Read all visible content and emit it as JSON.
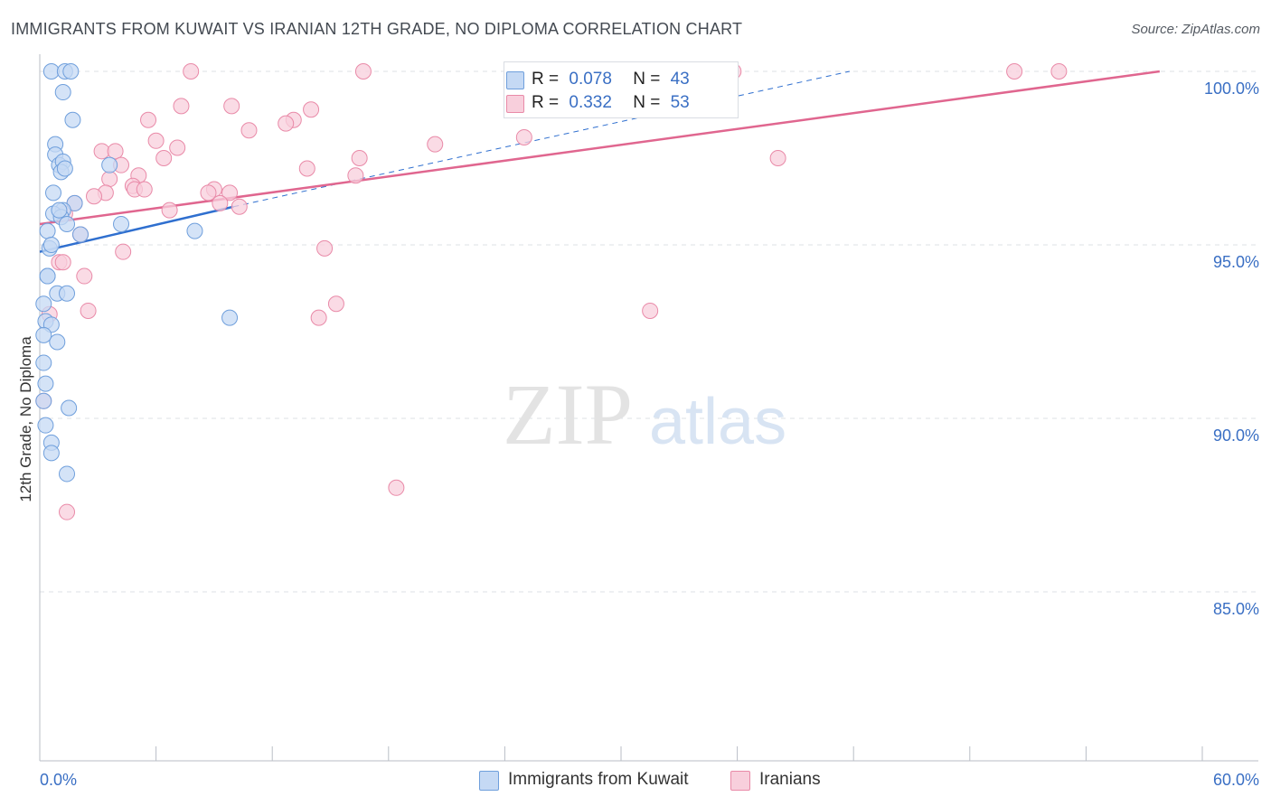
{
  "header": {
    "title": "IMMIGRANTS FROM KUWAIT VS IRANIAN 12TH GRADE, NO DIPLOMA CORRELATION CHART",
    "source": "Source: ZipAtlas.com"
  },
  "legend_top": {
    "rows": [
      {
        "r_label": "R =",
        "r_value": "0.078",
        "n_label": "N =",
        "n_value": "43"
      },
      {
        "r_label": "R =",
        "r_value": "0.332",
        "n_label": "N =",
        "n_value": "53"
      }
    ]
  },
  "watermark": {
    "zip": "ZIP",
    "atlas": "atlas"
  },
  "colors": {
    "blue_fill": "#c5d9f4",
    "blue_stroke": "#6f9fdc",
    "blue_line": "#2f6fcf",
    "pink_fill": "#f8cfdc",
    "pink_stroke": "#e98aa8",
    "pink_line": "#e0668f",
    "tick_label": "#3a6fc4"
  },
  "chart_data": {
    "type": "scatter",
    "title": "IMMIGRANTS FROM KUWAIT VS IRANIAN 12TH GRADE, NO DIPLOMA CORRELATION CHART",
    "xlabel": "",
    "ylabel": "12th Grade, No Diploma",
    "xlim": [
      0,
      60
    ],
    "ylim": [
      80.5,
      100.5
    ],
    "x_tick_labels": [
      {
        "value": 0,
        "label": "0.0%"
      },
      {
        "value": 60,
        "label": "60.0%"
      }
    ],
    "y_tick_labels": [
      {
        "value": 100,
        "label": "100.0%"
      },
      {
        "value": 95,
        "label": "95.0%"
      },
      {
        "value": 90,
        "label": "90.0%"
      },
      {
        "value": 85,
        "label": "85.0%"
      }
    ],
    "legend_placement": "bottom-center",
    "grid": true,
    "series": [
      {
        "name": "Immigrants from Kuwait",
        "r": 0.078,
        "n": 43,
        "trend_solid": [
          [
            0,
            94.8
          ],
          [
            10,
            96.1
          ]
        ],
        "trend_dashed": [
          [
            10,
            96.1
          ],
          [
            41.8,
            100.0
          ]
        ],
        "points": [
          [
            0.6,
            100.0
          ],
          [
            1.3,
            100.0
          ],
          [
            1.6,
            100.0
          ],
          [
            1.2,
            99.4
          ],
          [
            1.7,
            98.6
          ],
          [
            0.8,
            97.9
          ],
          [
            0.8,
            97.6
          ],
          [
            1.0,
            97.3
          ],
          [
            1.2,
            97.4
          ],
          [
            1.1,
            97.1
          ],
          [
            1.3,
            97.2
          ],
          [
            3.6,
            97.3
          ],
          [
            0.7,
            96.5
          ],
          [
            1.8,
            96.2
          ],
          [
            1.2,
            96.0
          ],
          [
            0.7,
            95.9
          ],
          [
            1.1,
            95.8
          ],
          [
            1.4,
            95.6
          ],
          [
            4.2,
            95.6
          ],
          [
            0.4,
            95.4
          ],
          [
            2.1,
            95.3
          ],
          [
            8.0,
            95.4
          ],
          [
            0.5,
            94.9
          ],
          [
            0.4,
            94.1
          ],
          [
            0.4,
            94.1
          ],
          [
            0.9,
            93.6
          ],
          [
            1.4,
            93.6
          ],
          [
            0.2,
            93.3
          ],
          [
            0.3,
            92.8
          ],
          [
            0.6,
            92.7
          ],
          [
            9.8,
            92.9
          ],
          [
            0.9,
            92.2
          ],
          [
            0.2,
            92.4
          ],
          [
            0.2,
            91.6
          ],
          [
            0.3,
            91.0
          ],
          [
            1.5,
            90.3
          ],
          [
            0.3,
            89.8
          ],
          [
            0.6,
            89.3
          ],
          [
            0.6,
            89.0
          ],
          [
            1.4,
            88.4
          ],
          [
            0.2,
            90.5
          ],
          [
            0.6,
            95.0
          ],
          [
            1.0,
            96.0
          ]
        ]
      },
      {
        "name": "Iranians",
        "r": 0.332,
        "n": 53,
        "trend_solid": [
          [
            0,
            95.6
          ],
          [
            57.8,
            100.0
          ]
        ],
        "points": [
          [
            7.8,
            100.0
          ],
          [
            16.7,
            100.0
          ],
          [
            35.8,
            100.0
          ],
          [
            50.3,
            100.0
          ],
          [
            52.6,
            100.0
          ],
          [
            7.3,
            99.0
          ],
          [
            9.9,
            99.0
          ],
          [
            14.0,
            98.9
          ],
          [
            13.1,
            98.6
          ],
          [
            5.6,
            98.6
          ],
          [
            12.7,
            98.5
          ],
          [
            10.8,
            98.3
          ],
          [
            25.0,
            98.1
          ],
          [
            6.0,
            98.0
          ],
          [
            20.4,
            97.9
          ],
          [
            7.1,
            97.8
          ],
          [
            3.2,
            97.7
          ],
          [
            3.9,
            97.7
          ],
          [
            16.5,
            97.5
          ],
          [
            38.1,
            97.5
          ],
          [
            6.4,
            97.5
          ],
          [
            4.2,
            97.3
          ],
          [
            13.8,
            97.2
          ],
          [
            16.3,
            97.0
          ],
          [
            5.1,
            97.0
          ],
          [
            3.6,
            96.9
          ],
          [
            4.8,
            96.7
          ],
          [
            9.0,
            96.6
          ],
          [
            4.9,
            96.6
          ],
          [
            5.4,
            96.6
          ],
          [
            3.4,
            96.5
          ],
          [
            8.7,
            96.5
          ],
          [
            9.8,
            96.5
          ],
          [
            2.8,
            96.4
          ],
          [
            9.3,
            96.2
          ],
          [
            1.8,
            96.2
          ],
          [
            10.3,
            96.1
          ],
          [
            6.7,
            96.0
          ],
          [
            1.3,
            95.9
          ],
          [
            2.1,
            95.3
          ],
          [
            14.7,
            94.9
          ],
          [
            4.3,
            94.8
          ],
          [
            1.0,
            94.5
          ],
          [
            1.2,
            94.5
          ],
          [
            2.3,
            94.1
          ],
          [
            15.3,
            93.3
          ],
          [
            0.5,
            93.0
          ],
          [
            2.5,
            93.1
          ],
          [
            31.5,
            93.1
          ],
          [
            14.4,
            92.9
          ],
          [
            0.2,
            90.5
          ],
          [
            18.4,
            88.0
          ],
          [
            1.4,
            87.3
          ]
        ]
      }
    ]
  },
  "legend_bottom": {
    "items": [
      {
        "label": "Immigrants from Kuwait"
      },
      {
        "label": "Iranians"
      }
    ]
  }
}
